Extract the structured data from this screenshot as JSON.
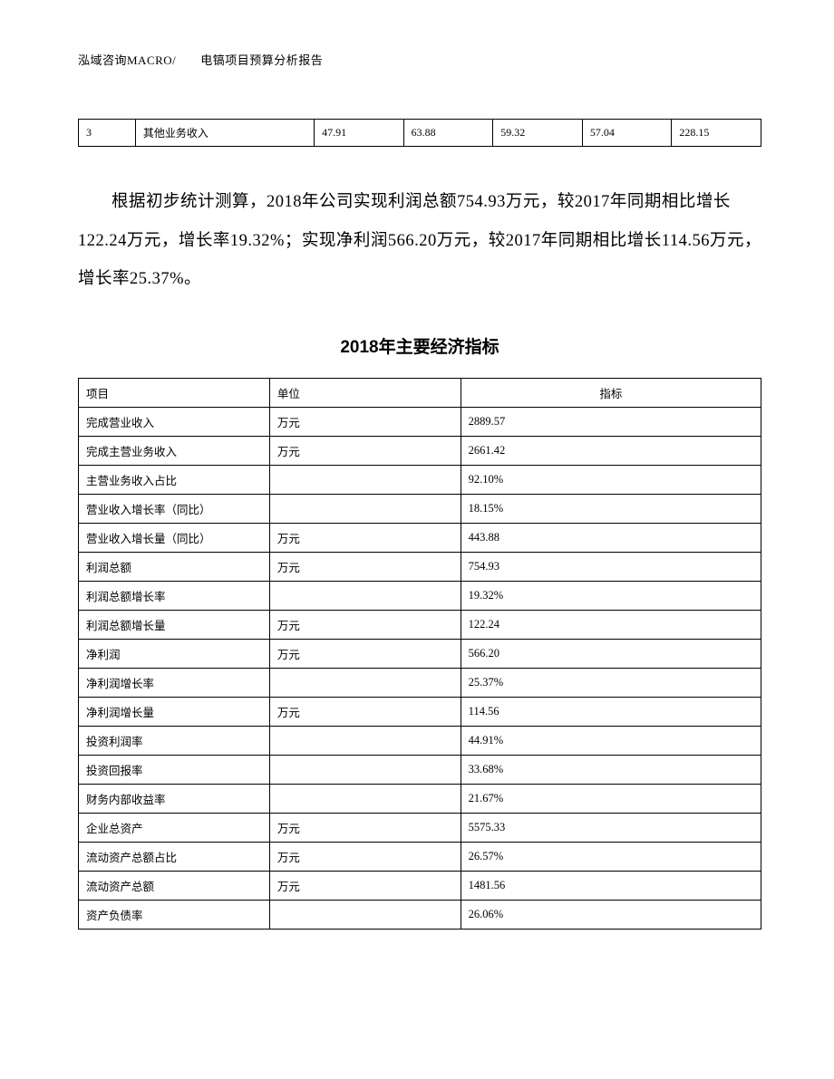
{
  "header": {
    "text": "泓域咨询MACRO/　　电镐项目预算分析报告"
  },
  "top_table": {
    "rows": [
      [
        "3",
        "其他业务收入",
        "47.91",
        "63.88",
        "59.32",
        "57.04",
        "228.15"
      ]
    ]
  },
  "paragraph": {
    "text": "根据初步统计测算，2018年公司实现利润总额754.93万元，较2017年同期相比增长122.24万元，增长率19.32%；实现净利润566.20万元，较2017年同期相比增长114.56万元，增长率25.37%。"
  },
  "main_table": {
    "title": "2018年主要经济指标",
    "headers": [
      "项目",
      "单位",
      "指标"
    ],
    "rows": [
      [
        "完成营业收入",
        "万元",
        "2889.57"
      ],
      [
        "完成主营业务收入",
        "万元",
        "2661.42"
      ],
      [
        "主营业务收入占比",
        "",
        "92.10%"
      ],
      [
        "营业收入增长率（同比）",
        "",
        "18.15%"
      ],
      [
        "营业收入增长量（同比）",
        "万元",
        "443.88"
      ],
      [
        "利润总额",
        "万元",
        "754.93"
      ],
      [
        "利润总额增长率",
        "",
        "19.32%"
      ],
      [
        "利润总额增长量",
        "万元",
        "122.24"
      ],
      [
        "净利润",
        "万元",
        "566.20"
      ],
      [
        "净利润增长率",
        "",
        "25.37%"
      ],
      [
        "净利润增长量",
        "万元",
        "114.56"
      ],
      [
        "投资利润率",
        "",
        "44.91%"
      ],
      [
        "投资回报率",
        "",
        "33.68%"
      ],
      [
        "财务内部收益率",
        "",
        "21.67%"
      ],
      [
        "企业总资产",
        "万元",
        "5575.33"
      ],
      [
        "流动资产总额占比",
        "万元",
        "26.57%"
      ],
      [
        "流动资产总额",
        "万元",
        "1481.56"
      ],
      [
        "资产负债率",
        "",
        "26.06%"
      ]
    ]
  }
}
